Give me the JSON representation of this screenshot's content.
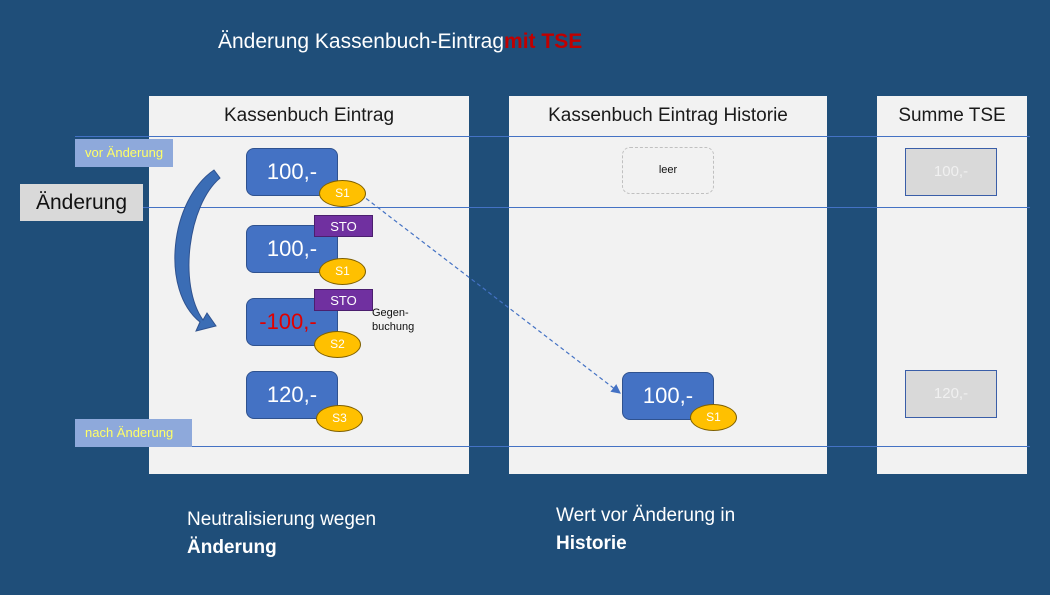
{
  "title": {
    "text": "Änderung Kassenbuch-Eintrag",
    "accent": "mit TSE"
  },
  "columns": {
    "entry": {
      "label": "Kassenbuch Eintrag"
    },
    "history": {
      "label": "Kassenbuch Eintrag Historie"
    },
    "tse": {
      "label": "Summe TSE"
    }
  },
  "tags": {
    "before": "vor Änderung",
    "after": "nach Änderung"
  },
  "change_label": "Änderung",
  "entries": [
    {
      "value": "100,-",
      "signature": "S1"
    },
    {
      "value": "100,-",
      "signature": "S1",
      "badge": "STO"
    },
    {
      "value": "-100,-",
      "signature": "S2",
      "badge": "STO",
      "note_line1": "Gegen-",
      "note_line2": "buchung",
      "color": "#e00000"
    },
    {
      "value": "120,-",
      "signature": "S3"
    }
  ],
  "history": {
    "empty": "leer",
    "value": "100,-",
    "signature": "S1"
  },
  "tse_sums": {
    "before": "100,-",
    "after": "120,-"
  },
  "captions": {
    "left_line1": "Neutralisierung wegen",
    "left_line2": "Änderung",
    "right_line1": "Wert vor Änderung in",
    "right_line2": "Historie"
  },
  "colors": {
    "background": "#1f4e79",
    "box": "#4472c4",
    "signature": "#ffc000",
    "storno": "#7030a0",
    "accent": "#c00000"
  }
}
